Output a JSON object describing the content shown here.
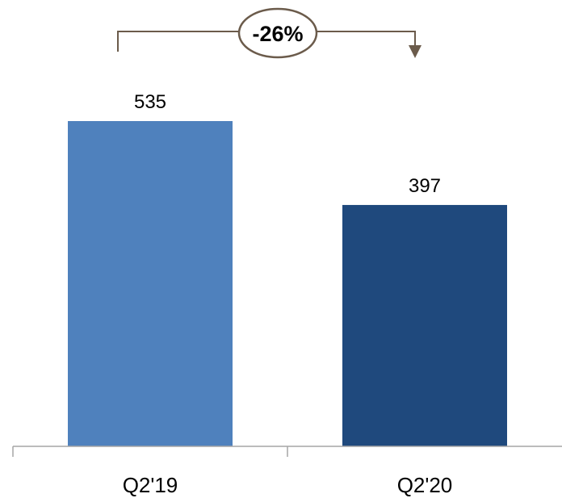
{
  "chart_data": {
    "type": "bar",
    "categories": [
      "Q2'19",
      "Q2'20"
    ],
    "values": [
      535,
      397
    ],
    "value_labels": [
      "535",
      "397"
    ],
    "title": "",
    "xlabel": "",
    "ylabel": "",
    "ylim": [
      0,
      535
    ],
    "grid": false,
    "colors": [
      "#4f81bd",
      "#1f497d"
    ],
    "annotation": {
      "type": "change-arrow",
      "text": "-26%",
      "from": "Q2'19",
      "to": "Q2'20"
    }
  },
  "colors": {
    "axis": "#a6a6a6",
    "annotation_line": "#6b5b4b"
  }
}
